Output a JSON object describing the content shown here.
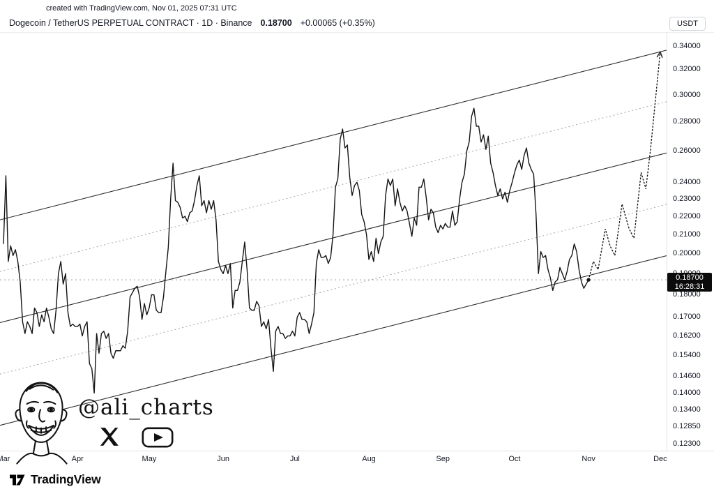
{
  "attribution": "created with TradingView.com, Nov 01, 2025 07:31 UTC",
  "header": {
    "title": "Dogecoin / TetherUS PERPETUAL CONTRACT · 1D · Binance",
    "price": "0.18700",
    "change": "+0.00065 (+0.35%)",
    "currency_button": "USDT"
  },
  "price_label": {
    "price": "0.18700",
    "countdown": "16:28:31"
  },
  "watermark": {
    "handle": "@ali_charts",
    "icons": [
      "x-twitter-icon",
      "youtube-icon"
    ]
  },
  "footer": {
    "brand": "TradingView"
  },
  "colors": {
    "line": "#141414",
    "channel_solid": "#2e2e2e",
    "channel_dashed": "#a0a3ab",
    "last_price_line": "#9598a1",
    "badge_bg": "#0b0b0b",
    "badge_text": "#ffffff"
  },
  "chart_data": {
    "type": "line",
    "title": "Dogecoin / TetherUS PERPETUAL CONTRACT, 1D, Binance",
    "y_scale": "log",
    "ylim": [
      0.123,
      0.34
    ],
    "y_ticks": [
      "0.34000",
      "0.32000",
      "0.30000",
      "0.28000",
      "0.26000",
      "0.24000",
      "0.23000",
      "0.22000",
      "0.21000",
      "0.20000",
      "0.19000",
      "0.18000",
      "0.17000",
      "0.16200",
      "0.15400",
      "0.14600",
      "0.14000",
      "0.13400",
      "0.12850",
      "0.12300"
    ],
    "x_unit": "calendar days, Mar 1 2025 = day 0",
    "x_ticks": [
      {
        "label": "Mar",
        "day": 0
      },
      {
        "label": "Apr",
        "day": 31
      },
      {
        "label": "May",
        "day": 61
      },
      {
        "label": "Jun",
        "day": 92
      },
      {
        "label": "Jul",
        "day": 122
      },
      {
        "label": "Aug",
        "day": 153
      },
      {
        "label": "Sep",
        "day": 184
      },
      {
        "label": "Oct",
        "day": 214
      },
      {
        "label": "Nov",
        "day": 245
      },
      {
        "label": "Dec",
        "day": 275
      }
    ],
    "series": {
      "name": "DOGEUSDT.P daily close",
      "start_day": 0,
      "values": [
        0.205,
        0.244,
        0.196,
        0.204,
        0.199,
        0.202,
        0.196,
        0.186,
        0.168,
        0.163,
        0.168,
        0.166,
        0.163,
        0.174,
        0.172,
        0.166,
        0.171,
        0.168,
        0.174,
        0.17,
        0.165,
        0.163,
        0.173,
        0.19,
        0.196,
        0.185,
        0.19,
        0.172,
        0.166,
        0.167,
        0.166,
        0.166,
        0.167,
        0.162,
        0.166,
        0.168,
        0.151,
        0.149,
        0.14,
        0.163,
        0.155,
        0.163,
        0.164,
        0.161,
        0.163,
        0.155,
        0.153,
        0.156,
        0.156,
        0.156,
        0.158,
        0.157,
        0.164,
        0.179,
        0.181,
        0.183,
        0.184,
        0.179,
        0.169,
        0.176,
        0.171,
        0.174,
        0.18,
        0.18,
        0.173,
        0.172,
        0.172,
        0.179,
        0.191,
        0.203,
        0.23,
        0.252,
        0.229,
        0.228,
        0.225,
        0.219,
        0.22,
        0.217,
        0.222,
        0.223,
        0.229,
        0.238,
        0.244,
        0.226,
        0.229,
        0.222,
        0.229,
        0.224,
        0.229,
        0.218,
        0.196,
        0.192,
        0.19,
        0.194,
        0.19,
        0.195,
        0.174,
        0.182,
        0.182,
        0.186,
        0.196,
        0.206,
        0.192,
        0.174,
        0.173,
        0.173,
        0.177,
        0.175,
        0.166,
        0.168,
        0.165,
        0.169,
        0.157,
        0.148,
        0.164,
        0.166,
        0.163,
        0.163,
        0.161,
        0.162,
        0.162,
        0.164,
        0.162,
        0.17,
        0.172,
        0.169,
        0.169,
        0.168,
        0.163,
        0.167,
        0.172,
        0.195,
        0.202,
        0.198,
        0.198,
        0.199,
        0.195,
        0.198,
        0.21,
        0.237,
        0.242,
        0.268,
        0.275,
        0.262,
        0.264,
        0.243,
        0.232,
        0.238,
        0.24,
        0.235,
        0.221,
        0.217,
        0.21,
        0.197,
        0.201,
        0.196,
        0.208,
        0.2,
        0.206,
        0.209,
        0.232,
        0.242,
        0.238,
        0.242,
        0.226,
        0.236,
        0.228,
        0.223,
        0.226,
        0.223,
        0.216,
        0.209,
        0.219,
        0.215,
        0.237,
        0.237,
        0.242,
        0.231,
        0.218,
        0.224,
        0.222,
        0.214,
        0.211,
        0.215,
        0.213,
        0.216,
        0.214,
        0.214,
        0.223,
        0.215,
        0.217,
        0.23,
        0.24,
        0.245,
        0.26,
        0.266,
        0.284,
        0.29,
        0.277,
        0.277,
        0.266,
        0.271,
        0.261,
        0.27,
        0.252,
        0.246,
        0.238,
        0.232,
        0.236,
        0.23,
        0.234,
        0.228,
        0.235,
        0.24,
        0.246,
        0.251,
        0.254,
        0.248,
        0.257,
        0.262,
        0.252,
        0.248,
        0.245,
        0.221,
        0.19,
        0.201,
        0.198,
        0.199,
        0.192,
        0.188,
        0.182,
        0.186,
        0.187,
        0.193,
        0.19,
        0.187,
        0.191,
        0.197,
        0.199,
        0.205,
        0.201,
        0.192,
        0.186,
        0.183,
        0.185,
        0.187
      ]
    },
    "projection": {
      "style": "dotted-arrow",
      "points": [
        [
          245,
          0.187
        ],
        [
          247,
          0.196
        ],
        [
          249,
          0.192
        ],
        [
          252,
          0.213
        ],
        [
          254,
          0.204
        ],
        [
          256,
          0.199
        ],
        [
          259,
          0.227
        ],
        [
          262,
          0.213
        ],
        [
          264,
          0.208
        ],
        [
          267,
          0.246
        ],
        [
          269,
          0.236
        ],
        [
          271,
          0.262
        ],
        [
          275,
          0.335
        ]
      ]
    },
    "channel": {
      "slope_log10_per_day": 0.000675,
      "lines": [
        {
          "name": "upper",
          "price_at_day0": 0.2185,
          "style": "solid"
        },
        {
          "name": "upper-quartile",
          "price_at_day0": 0.1915,
          "style": "dashed"
        },
        {
          "name": "median",
          "price_at_day0": 0.168,
          "style": "solid"
        },
        {
          "name": "lower-quartile",
          "price_at_day0": 0.1473,
          "style": "dashed"
        },
        {
          "name": "lower",
          "price_at_day0": 0.1292,
          "style": "solid"
        }
      ]
    },
    "last_price": 0.187,
    "last_price_label": {
      "price": "0.18700",
      "countdown": "16:28:31"
    }
  }
}
